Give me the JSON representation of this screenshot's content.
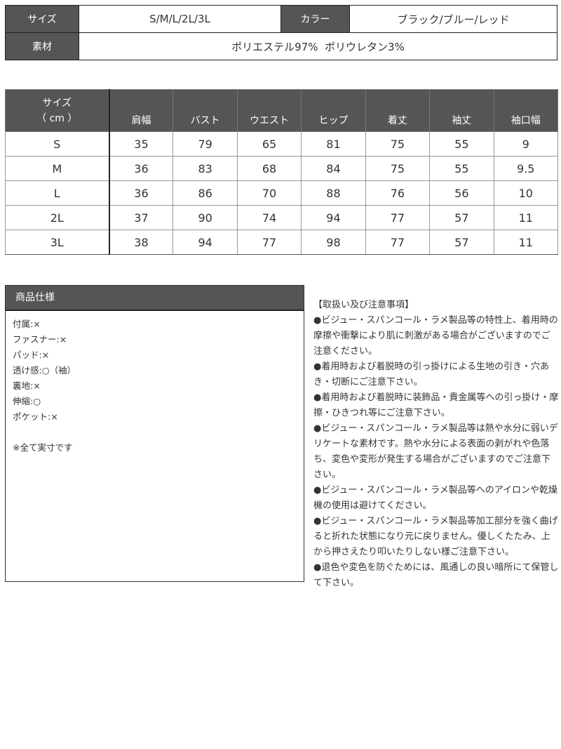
{
  "basic": {
    "size_label": "サイズ",
    "size_value": "S/M/L/2L/3L",
    "color_label": "カラー",
    "color_value": "ブラック/ブルー/レッド",
    "material_label": "素材",
    "material_value": "ポリエステル97%  ポリウレタン3%"
  },
  "size_table": {
    "header_first": [
      "サイズ",
      "（ cm ）"
    ],
    "headers": [
      "肩幅",
      "バスト",
      "ウエスト",
      "ヒップ",
      "着丈",
      "袖丈",
      "袖口幅"
    ],
    "rows": [
      [
        "S",
        "35",
        "79",
        "65",
        "81",
        "75",
        "55",
        "9"
      ],
      [
        "M",
        "36",
        "83",
        "68",
        "84",
        "75",
        "55",
        "9.5"
      ],
      [
        "L",
        "36",
        "86",
        "70",
        "88",
        "76",
        "56",
        "10"
      ],
      [
        "2L",
        "37",
        "90",
        "74",
        "94",
        "77",
        "57",
        "11"
      ],
      [
        "3L",
        "38",
        "94",
        "77",
        "98",
        "77",
        "57",
        "11"
      ]
    ]
  },
  "spec": {
    "title": "商品仕様",
    "items": [
      "付属:×",
      "ファスナー:×",
      "パッド:×",
      "透け感:○（袖）",
      "裏地:×",
      "伸縮:○",
      "ポケット:×"
    ],
    "note": "※全て実寸です"
  },
  "notes": {
    "title": "【取扱い及び注意事項】",
    "items": [
      "●ビジュー・スパンコール・ラメ製品等の特性上、着用時の摩擦や衝撃により肌に刺激がある場合がございますのでご注意ください。",
      "●着用時および着脱時の引っ掛けによる生地の引き・穴あき・切断にご注意下さい。",
      "●着用時および着脱時に装飾品・貴金属等への引っ掛け・摩擦・ひきつれ等にご注意下さい。",
      "●ビジュー・スパンコール・ラメ製品等は熱や水分に弱いデリケートな素材です。熱や水分による表面の剥がれや色落ち、変色や変形が発生する場合がございますのでご注意下さい。",
      "●ビジュー・スパンコール・ラメ製品等へのアイロンや乾燥機の使用は避けてください。",
      "●ビジュー・スパンコール・ラメ製品等加工部分を強く曲げると折れた状態になり元に戻りません。優しくたたみ、上から押さえたり叩いたりしない様ご注意下さい。",
      "●退色や変色を防ぐためには、風通しの良い暗所にて保管して下さい。"
    ]
  }
}
